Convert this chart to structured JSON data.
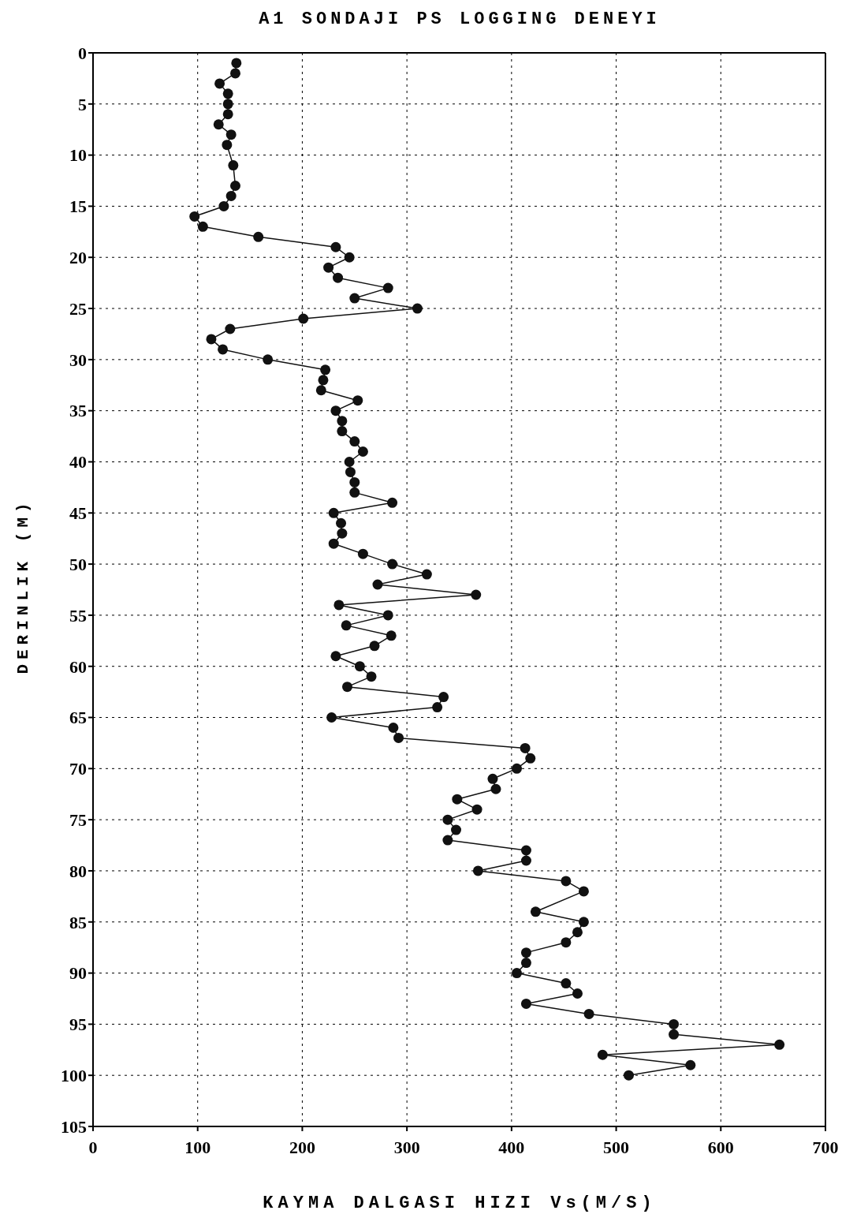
{
  "chart_data": {
    "type": "line",
    "title": "A1 SONDAJI PS LOGGING DENEYI",
    "xlabel": "KAYMA DALGASI HIZI Vs(M/S)",
    "ylabel": "DERINLIK (M)",
    "x": [
      137,
      136,
      121,
      129,
      129,
      129,
      120,
      132,
      128,
      134,
      136,
      132,
      125,
      97,
      105,
      158,
      232,
      245,
      225,
      234,
      282,
      250,
      310,
      201,
      131,
      113,
      124,
      167,
      222,
      220,
      218,
      253,
      232,
      238,
      238,
      250,
      258,
      245,
      246,
      250,
      250,
      286,
      230,
      237,
      238,
      230,
      258,
      286,
      319,
      272,
      366,
      235,
      282,
      242,
      285,
      269,
      232,
      255,
      266,
      243,
      335,
      329,
      228,
      287,
      292,
      413,
      418,
      405,
      382,
      385,
      348,
      367,
      339,
      347,
      339,
      414,
      414,
      368,
      452,
      469,
      423,
      469,
      463,
      452,
      414,
      414,
      405,
      452,
      463,
      414,
      474,
      555,
      555,
      656,
      487,
      571,
      512
    ],
    "values": [
      1,
      2,
      3,
      4,
      5,
      6,
      7,
      8,
      9,
      11,
      13,
      14,
      15,
      16,
      17,
      18,
      19,
      20,
      21,
      22,
      23,
      24,
      25,
      26,
      27,
      28,
      29,
      30,
      31,
      32,
      33,
      34,
      35,
      36,
      37,
      38,
      39,
      40,
      41,
      42,
      43,
      44,
      45,
      46,
      47,
      48,
      49,
      50,
      51,
      52,
      53,
      54,
      55,
      56,
      57,
      58,
      59,
      60,
      61,
      62,
      63,
      64,
      65,
      66,
      67,
      68,
      69,
      70,
      71,
      72,
      73,
      74,
      75,
      76,
      77,
      78,
      79,
      80,
      81,
      82,
      84,
      85,
      86,
      87,
      88,
      89,
      90,
      91,
      92,
      93,
      94,
      95,
      96,
      97,
      98,
      99,
      100
    ],
    "color": "#111111",
    "marker": "circle",
    "line_style": "solid",
    "grid": true,
    "xlim": [
      0,
      700
    ],
    "xticks": [
      0,
      100,
      200,
      300,
      400,
      500,
      600,
      700
    ],
    "ylim": [
      105,
      0
    ],
    "yticks": [
      0,
      5,
      10,
      15,
      20,
      25,
      30,
      35,
      40,
      45,
      50,
      55,
      60,
      65,
      70,
      75,
      80,
      85,
      90,
      95,
      100,
      105
    ]
  }
}
